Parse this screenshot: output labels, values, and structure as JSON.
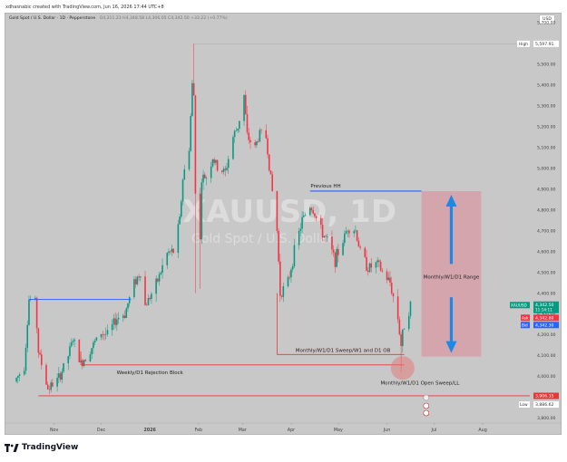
{
  "header": {
    "credit": "xdhasnabic created with TradingView.com, Jun 16, 2026 17:44 UTC+8"
  },
  "info": {
    "symbol_line": "Gold Spot / U.S. Dollar · 1D · Pepperstone",
    "ohlc": "O4,311.23 H4,348.58 L4,306.05 C4,342.50 +33.22 (+0.77%)"
  },
  "currency_button": "USD",
  "watermark": {
    "ticker": "XAUUSD, 1D",
    "name": "Gold Spot / U.S. Dollar"
  },
  "annotations": {
    "previous_hh": "Previous HH",
    "range": "Monthly/W1/D1 Range",
    "sweep": "Monthly/W1/D1 Sweep/W1 and D1 OB",
    "rejection": "Weekly/D1 Rejection Block",
    "open_sweep": "Monthly/W1/D1 Open Sweep/LL"
  },
  "price_tags": {
    "high_label": "High",
    "high_value": "5,597.91",
    "symbol_tag": "XAUUSD",
    "last_price": "4,342.50",
    "countdown": "11:14:11",
    "ask_label": "Ask",
    "ask_value": "4,342.80",
    "bid_label": "Bid",
    "bid_value": "4,342.30",
    "line_value": "3,906.35",
    "low_label": "Low",
    "low_value": "3,886.62"
  },
  "footer": {
    "brand": "TradingView"
  },
  "colors": {
    "up": "#089981",
    "down": "#f23645",
    "hh_line": "#2962ff",
    "range_box": "#d99aa5",
    "arrow": "#1e88e5"
  },
  "chart_data": {
    "type": "candlestick",
    "title": "",
    "xlabel": "",
    "ylabel": "",
    "x_ticks": [
      "Nov",
      "Dec",
      "2026",
      "Feb",
      "Mar",
      "Apr",
      "May",
      "Jun",
      "Jul",
      "Aug"
    ],
    "y_ticks": [
      3800,
      3900,
      4000,
      4100,
      4200,
      4300,
      4400,
      4500,
      4600,
      4700,
      4800,
      4900,
      5000,
      5100,
      5200,
      5300,
      5400,
      5500,
      5600,
      5700
    ],
    "ylim": [
      3780,
      5730
    ],
    "close_series": [
      {
        "date": "2025-10-08",
        "close": 3990
      },
      {
        "date": "2025-10-13",
        "close": 4050
      },
      {
        "date": "2025-10-16",
        "close": 4370
      },
      {
        "date": "2025-10-20",
        "close": 4360
      },
      {
        "date": "2025-10-22",
        "close": 4120
      },
      {
        "date": "2025-10-28",
        "close": 3940
      },
      {
        "date": "2025-11-04",
        "close": 3990
      },
      {
        "date": "2025-11-10",
        "close": 4100
      },
      {
        "date": "2025-11-13",
        "close": 4180
      },
      {
        "date": "2025-11-18",
        "close": 4060
      },
      {
        "date": "2025-11-25",
        "close": 4140
      },
      {
        "date": "2025-12-01",
        "close": 4210
      },
      {
        "date": "2025-12-05",
        "close": 4200
      },
      {
        "date": "2025-12-11",
        "close": 4280
      },
      {
        "date": "2025-12-16",
        "close": 4300
      },
      {
        "date": "2025-12-22",
        "close": 4450
      },
      {
        "date": "2025-12-26",
        "close": 4500
      },
      {
        "date": "2025-12-29",
        "close": 4340
      },
      {
        "date": "2026-01-05",
        "close": 4440
      },
      {
        "date": "2026-01-12",
        "close": 4590
      },
      {
        "date": "2026-01-16",
        "close": 4600
      },
      {
        "date": "2026-01-20",
        "close": 4750
      },
      {
        "date": "2026-01-22",
        "close": 4950
      },
      {
        "date": "2026-01-26",
        "close": 5100
      },
      {
        "date": "2026-01-28",
        "close": 5400
      },
      {
        "date": "2026-01-29",
        "close": 5350
      },
      {
        "date": "2026-01-30",
        "close": 4900
      },
      {
        "date": "2026-02-02",
        "close": 4650
      },
      {
        "date": "2026-02-03",
        "close": 4950
      },
      {
        "date": "2026-02-06",
        "close": 4960
      },
      {
        "date": "2026-02-10",
        "close": 5050
      },
      {
        "date": "2026-02-13",
        "close": 5000
      },
      {
        "date": "2026-02-18",
        "close": 4980
      },
      {
        "date": "2026-02-23",
        "close": 5150
      },
      {
        "date": "2026-02-26",
        "close": 5200
      },
      {
        "date": "2026-03-02",
        "close": 5350
      },
      {
        "date": "2026-03-04",
        "close": 5150
      },
      {
        "date": "2026-03-09",
        "close": 5100
      },
      {
        "date": "2026-03-12",
        "close": 5170
      },
      {
        "date": "2026-03-16",
        "close": 5150
      },
      {
        "date": "2026-03-19",
        "close": 4950
      },
      {
        "date": "2026-03-23",
        "close": 4700
      },
      {
        "date": "2026-03-25",
        "close": 4400
      },
      {
        "date": "2026-03-30",
        "close": 4450
      },
      {
        "date": "2026-04-03",
        "close": 4600
      },
      {
        "date": "2026-04-08",
        "close": 4750
      },
      {
        "date": "2026-04-13",
        "close": 4820
      },
      {
        "date": "2026-04-15",
        "close": 4800
      },
      {
        "date": "2026-04-20",
        "close": 4700
      },
      {
        "date": "2026-04-24",
        "close": 4650
      },
      {
        "date": "2026-04-29",
        "close": 4560
      },
      {
        "date": "2026-05-04",
        "close": 4650
      },
      {
        "date": "2026-05-07",
        "close": 4720
      },
      {
        "date": "2026-05-12",
        "close": 4700
      },
      {
        "date": "2026-05-15",
        "close": 4600
      },
      {
        "date": "2026-05-20",
        "close": 4520
      },
      {
        "date": "2026-05-26",
        "close": 4540
      },
      {
        "date": "2026-05-29",
        "close": 4500
      },
      {
        "date": "2026-06-03",
        "close": 4450
      },
      {
        "date": "2026-06-08",
        "close": 4280
      },
      {
        "date": "2026-06-10",
        "close": 4150
      },
      {
        "date": "2026-06-12",
        "close": 4250
      },
      {
        "date": "2026-06-16",
        "close": 4342.5
      }
    ],
    "levels": [
      {
        "label": "Previous HH",
        "price": 4890,
        "from": "2026-04-13",
        "to": "2026-06-23"
      },
      {
        "label": "",
        "price": 4370,
        "from": "2025-10-16",
        "to": "2025-12-20"
      },
      {
        "label": "Monthly/W1/D1 Sweep/W1 and D1 OB",
        "price": 4105,
        "from": "2026-03-23",
        "to": "2026-06-12"
      },
      {
        "label": "Weekly/D1 Rejection Block",
        "price": 4055,
        "from": "2025-11-18",
        "to": "2026-06-12"
      },
      {
        "label": "",
        "price": 3906.35,
        "from": "2025-10-22",
        "to": "2026-08-31"
      }
    ],
    "range_box": {
      "label": "Monthly/W1/D1 Range",
      "top": 4890,
      "bottom": 4095,
      "from": "2026-06-23",
      "to": "2026-07-31"
    },
    "high": 5597.91,
    "low": 3886.62,
    "last": 4342.5
  }
}
